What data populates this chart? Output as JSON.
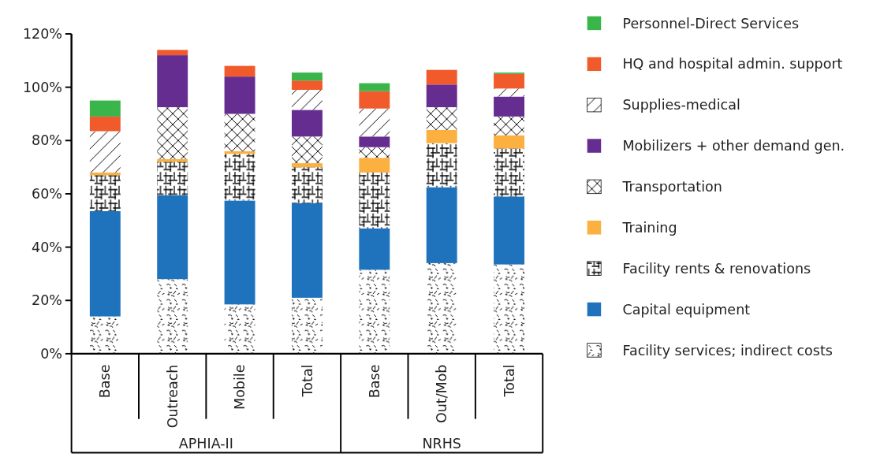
{
  "chart_data": {
    "type": "bar",
    "stacked": true,
    "categories": [
      "Base",
      "Outreach",
      "Mobile",
      "Total",
      "Base",
      "Out/Mob",
      "Total"
    ],
    "series": [
      {
        "name": "Facility services; indirect costs",
        "color": "#000000",
        "values": [
          14,
          28,
          18.5,
          21,
          31.5,
          34,
          33.5
        ]
      },
      {
        "name": "Capital equipment",
        "color": "#1f73bd",
        "values": [
          39.5,
          31.5,
          39,
          35.5,
          15.5,
          28.5,
          25.5
        ]
      },
      {
        "name": "Facility rents & renovations",
        "color": "#000000",
        "values": [
          13.5,
          12.5,
          17.5,
          13.5,
          21,
          16.5,
          18
        ]
      },
      {
        "name": "Training",
        "color": "#fbb040",
        "values": [
          1,
          1,
          1,
          1.5,
          5.5,
          5,
          5
        ]
      },
      {
        "name": "Transportation",
        "color": "#000000",
        "values": [
          0,
          19.5,
          14,
          10,
          4,
          8.5,
          7
        ]
      },
      {
        "name": "Mobilizers + other demand gen.",
        "color": "#662d91",
        "values": [
          0,
          19.5,
          14,
          10,
          4,
          8.5,
          7.5
        ]
      },
      {
        "name": "Supplies-medical",
        "color": "#000000",
        "values": [
          15.5,
          0,
          0,
          7.5,
          10.5,
          0,
          3
        ]
      },
      {
        "name": "HQ and hospital admin. support",
        "color": "#f15a2b",
        "values": [
          5.5,
          2,
          4,
          3.5,
          6.5,
          5.5,
          5.5
        ]
      },
      {
        "name": "Personnel-Direct Services",
        "color": "#39b54a",
        "values": [
          6,
          0,
          0,
          3,
          3,
          0,
          0.5
        ]
      }
    ],
    "ylim": [
      0,
      120
    ],
    "yticks": [
      {
        "value": 0,
        "label": "0%"
      },
      {
        "value": 20,
        "label": "20%"
      },
      {
        "value": 40,
        "label": "40%"
      },
      {
        "value": 60,
        "label": "60%"
      },
      {
        "value": 80,
        "label": "80%"
      },
      {
        "value": 100,
        "label": "100%"
      },
      {
        "value": 120,
        "label": "120%"
      }
    ],
    "legend": "right",
    "annotations": [
      "APHIA-II",
      "NRHS"
    ]
  }
}
